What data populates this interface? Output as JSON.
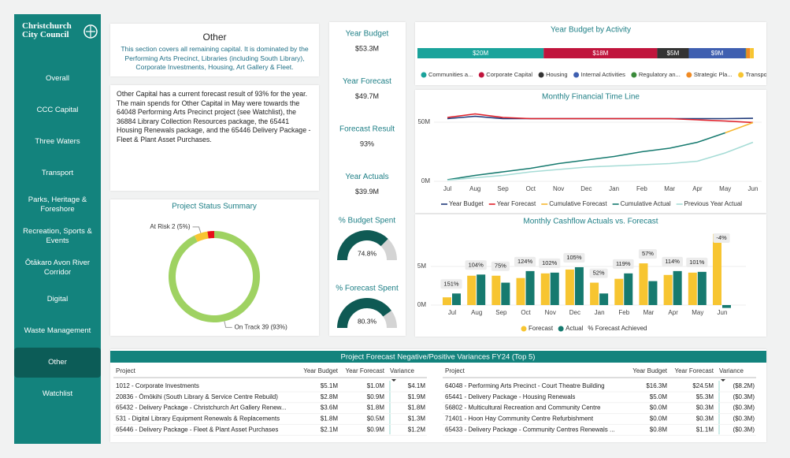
{
  "sidebar": {
    "logo": [
      "Christchurch",
      "City Council"
    ],
    "nav": [
      "Overall",
      "CCC Capital",
      "Three Waters",
      "Transport",
      "Parks, Heritage & Foreshore",
      "Recreation, Sports & Events",
      "Ōtākaro Avon River Corridor",
      "Digital",
      "Waste Management",
      "Other",
      "Watchlist"
    ],
    "active": "Other"
  },
  "about": {
    "title": "Other",
    "text": "This section covers all remaining capital. It is dominated by the Performing Arts Precinct, Libraries (including South Library), Corporate Investments, Housing, Art Gallery & Fleet."
  },
  "summary": "Other Capital has a current forecast result of 93% for the year. The main spends for Other Capital in May were towards the 64048 Performing Arts Precinct project (see Watchlist), the 36884 Library Collection Resources package, the 65441 Housing Renewals package, and the 65446 Delivery Package - Fleet & Plant Asset Purchases.",
  "kpis": [
    {
      "label": "Year Budget",
      "value": "$53.3M"
    },
    {
      "label": "Year Forecast",
      "value": "$49.7M"
    },
    {
      "label": "Forecast Result",
      "value": "93%"
    },
    {
      "label": "Year Actuals",
      "value": "$39.9M"
    }
  ],
  "gauges": [
    {
      "title": "% Budget Spent",
      "value": 74.8,
      "value_label": "74.8%",
      "range": [
        0,
        100
      ]
    },
    {
      "title": "% Forecast Spent",
      "value": 80.3,
      "value_label": "80.3%",
      "range": [
        0,
        100
      ]
    }
  ],
  "charts": {
    "activity": {
      "type": "stacked_bar",
      "title": "Year Budget by Activity",
      "categories": [
        "Communities a...",
        "Corporate Capital",
        "Housing",
        "Internal Activities",
        "Regulatory an...",
        "Strategic Pla...",
        "Transport"
      ],
      "values": [
        20,
        18,
        5,
        9,
        0.1,
        0.6,
        0.6
      ],
      "value_labels": [
        "$20M",
        "$18M",
        "$5M",
        "$9M",
        null,
        null,
        null
      ],
      "colors": [
        "#1aa39b",
        "#c0143c",
        "#333333",
        "#3f5fb0",
        "#3a8a3a",
        "#f08a24",
        "#f7c531"
      ],
      "xlim": [
        0,
        53.3
      ]
    },
    "status": {
      "type": "pie",
      "title": "Project Status Summary",
      "labels": [
        "On Track 39 (93%)",
        "At Risk 2 (5%)",
        null
      ],
      "values": [
        39,
        2,
        1
      ],
      "colors": [
        "#9fd262",
        "#f7c531",
        "#e8101a"
      ]
    },
    "timeline": {
      "type": "line",
      "title": "Monthly Financial Time Line",
      "categories": [
        "Jul",
        "Aug",
        "Sep",
        "Oct",
        "Nov",
        "Dec",
        "Jan",
        "Feb",
        "Mar",
        "Apr",
        "May",
        "Jun"
      ],
      "ylim": [
        0,
        60
      ],
      "yticks": [
        {
          "value": 0,
          "label": "0M"
        },
        {
          "value": 50,
          "label": "50M"
        }
      ],
      "series": [
        {
          "name": "Year Budget",
          "color": "#1f3a7a",
          "values": [
            53,
            55,
            53,
            53,
            53,
            53,
            53,
            53,
            53,
            53,
            53,
            53.3
          ]
        },
        {
          "name": "Year Forecast",
          "color": "#e0202a",
          "values": [
            54,
            57,
            54,
            53,
            53,
            53,
            53,
            53,
            53,
            52,
            51,
            49.7
          ]
        },
        {
          "name": "Cumulative Forecast",
          "color": "#f7b731",
          "values": [
            null,
            null,
            null,
            null,
            null,
            null,
            null,
            null,
            null,
            null,
            41,
            49.7
          ]
        },
        {
          "name": "Cumulative Actual",
          "color": "#167a6f",
          "values": [
            1.3,
            5,
            8,
            11,
            15,
            18,
            21,
            25,
            28,
            33,
            41,
            null
          ]
        },
        {
          "name": "Previous Year Actual",
          "color": "#a6dcd6",
          "values": [
            1,
            3,
            5,
            8,
            10,
            12,
            13,
            14,
            15,
            17,
            24,
            33
          ]
        }
      ]
    },
    "cashflow": {
      "type": "bar",
      "title": "Monthly Cashflow Actuals vs. Forecast",
      "categories": [
        "Jul",
        "Aug",
        "Sep",
        "Oct",
        "Nov",
        "Dec",
        "Jan",
        "Feb",
        "Mar",
        "Apr",
        "May",
        "Jun"
      ],
      "ylim": [
        -0.6,
        10
      ],
      "yticks": [
        {
          "value": 0,
          "label": "0M"
        },
        {
          "value": 5,
          "label": "5M"
        }
      ],
      "series": [
        {
          "name": "Forecast",
          "color": "#f7c531",
          "values": [
            1.0,
            3.8,
            3.8,
            3.5,
            4.1,
            4.6,
            2.9,
            3.4,
            5.4,
            3.9,
            4.2,
            9.2
          ]
        },
        {
          "name": "Actual",
          "color": "#167a6f",
          "values": [
            1.5,
            3.95,
            2.9,
            4.4,
            4.2,
            4.9,
            1.5,
            4.1,
            3.1,
            4.4,
            4.3,
            -0.37
          ]
        },
        {
          "name": "% Forecast Achieved",
          "values": [
            151,
            104,
            75,
            124,
            102,
            105,
            52,
            119,
            57,
            114,
            101,
            -4
          ],
          "value_labels": [
            "151%",
            "104%",
            "75%",
            "124%",
            "102%",
            "105%",
            "52%",
            "119%",
            "57%",
            "114%",
            "101%",
            "-4%"
          ]
        }
      ]
    }
  },
  "variances": {
    "title": "Project Forecast Negative/Positive Variances FY24 (Top 5)",
    "columns": [
      "Project",
      "Year Budget",
      "Year Forecast",
      "Variance"
    ],
    "left": [
      [
        "1012 - Corporate Investments",
        "$5.1M",
        "$1.0M",
        "$4.1M"
      ],
      [
        "20836 - Ōmōkihi (South Library & Service Centre Rebuild)",
        "$2.8M",
        "$0.9M",
        "$1.9M"
      ],
      [
        "65432 - Delivery Package - Christchurch Art Gallery Renew...",
        "$3.6M",
        "$1.8M",
        "$1.8M"
      ],
      [
        "531 - Digital Library Equipment Renewals & Replacements",
        "$1.8M",
        "$0.5M",
        "$1.3M"
      ],
      [
        "65446 - Delivery Package - Fleet & Plant Asset Purchases",
        "$2.1M",
        "$0.9M",
        "$1.2M"
      ]
    ],
    "right": [
      [
        "64048 - Performing Arts Precinct - Court Theatre Building",
        "$16.3M",
        "$24.5M",
        "($8.2M)"
      ],
      [
        "65441 - Delivery Package - Housing Renewals",
        "$5.0M",
        "$5.3M",
        "($0.3M)"
      ],
      [
        "56802 - Multicultural Recreation and Community Centre",
        "$0.0M",
        "$0.3M",
        "($0.3M)"
      ],
      [
        "71401 - Hoon Hay Community Centre Refurbishment",
        "$0.0M",
        "$0.3M",
        "($0.3M)"
      ],
      [
        "65433 - Delivery Package - Community Centres Renewals ...",
        "$0.8M",
        "$1.1M",
        "($0.3M)"
      ]
    ]
  }
}
